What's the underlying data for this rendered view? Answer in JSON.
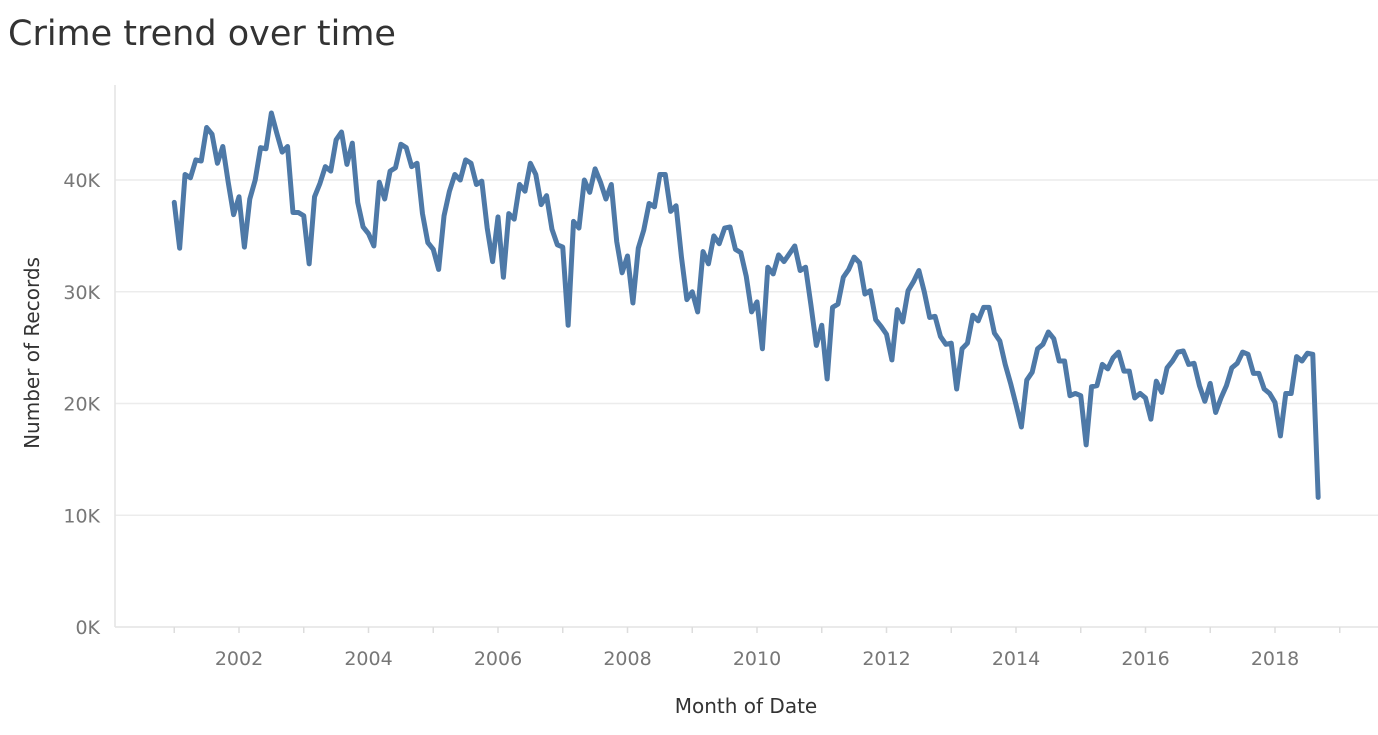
{
  "chart_data": {
    "type": "line",
    "title": "Crime trend over time",
    "xlabel": "Month of Date",
    "ylabel": "Number of Records",
    "x_tick_labels": [
      "2002",
      "2004",
      "2006",
      "2008",
      "2010",
      "2012",
      "2014",
      "2016",
      "2018"
    ],
    "y_ticks": [
      0,
      10000,
      20000,
      30000,
      40000
    ],
    "y_tick_labels": [
      "0K",
      "10K",
      "20K",
      "30K",
      "40K"
    ],
    "ylim": [
      0,
      46000
    ],
    "xlim": [
      "2000-12",
      "2019-06"
    ],
    "grid": "horizontal",
    "line_color": "#4e79a7",
    "series": [
      {
        "start": "2001-01",
        "values": [
          38000,
          33900,
          40500,
          40200,
          41800,
          41700,
          44700,
          44100,
          41500,
          43000,
          39800,
          36900,
          38500,
          34000,
          38300,
          40000,
          42900,
          42800,
          46000,
          44200,
          42500,
          43000,
          37100,
          37100,
          36800,
          32500,
          38500,
          39700,
          41200,
          40800,
          43600,
          44300,
          41400,
          43300,
          38000,
          35800,
          35200,
          34100,
          39800,
          38300,
          40800,
          41100,
          43200,
          42900,
          41200,
          41500,
          37000,
          34400,
          33800,
          32000,
          36800,
          39000,
          40500,
          40000,
          41800,
          41500,
          39600,
          39900,
          35700,
          32700,
          36700,
          31300,
          37000,
          36500,
          39600,
          39000,
          41500,
          40500,
          37800,
          38600,
          35600,
          34200,
          34000,
          27000,
          36300,
          35700,
          40000,
          38900,
          41000,
          39800,
          38300,
          39600,
          34500,
          31700,
          33200,
          29000,
          33900,
          35500,
          37900,
          37600,
          40500,
          40500,
          37200,
          37700,
          33100,
          29300,
          30000,
          28200,
          33600,
          32500,
          35000,
          34300,
          35700,
          35800,
          33800,
          33500,
          31400,
          28200,
          29100,
          24900,
          32200,
          31600,
          33300,
          32700,
          33400,
          34100,
          31900,
          32200,
          28800,
          25200,
          27000,
          22200,
          28600,
          28900,
          31300,
          32000,
          33100,
          32600,
          29800,
          30100,
          27500,
          26900,
          26200,
          23900,
          28400,
          27300,
          30100,
          30900,
          31900,
          30000,
          27700,
          27800,
          26000,
          25300,
          25400,
          21300,
          24900,
          25400,
          27900,
          27400,
          28600,
          28600,
          26300,
          25600,
          23500,
          21800,
          19900,
          17900,
          22100,
          22800,
          24900,
          25300,
          26400,
          25800,
          23800,
          23800,
          20700,
          20900,
          20700,
          16300,
          21500,
          21600,
          23500,
          23100,
          24100,
          24600,
          22900,
          22900,
          20500,
          20900,
          20500,
          18600,
          22000,
          21000,
          23200,
          23800,
          24600,
          24700,
          23500,
          23600,
          21600,
          20200,
          21800,
          19200,
          20500,
          21600,
          23200,
          23600,
          24600,
          24400,
          22700,
          22700,
          21300,
          20900,
          20100,
          17100,
          20900,
          20900,
          24200,
          23800,
          24500,
          24400,
          11600
        ]
      }
    ]
  }
}
